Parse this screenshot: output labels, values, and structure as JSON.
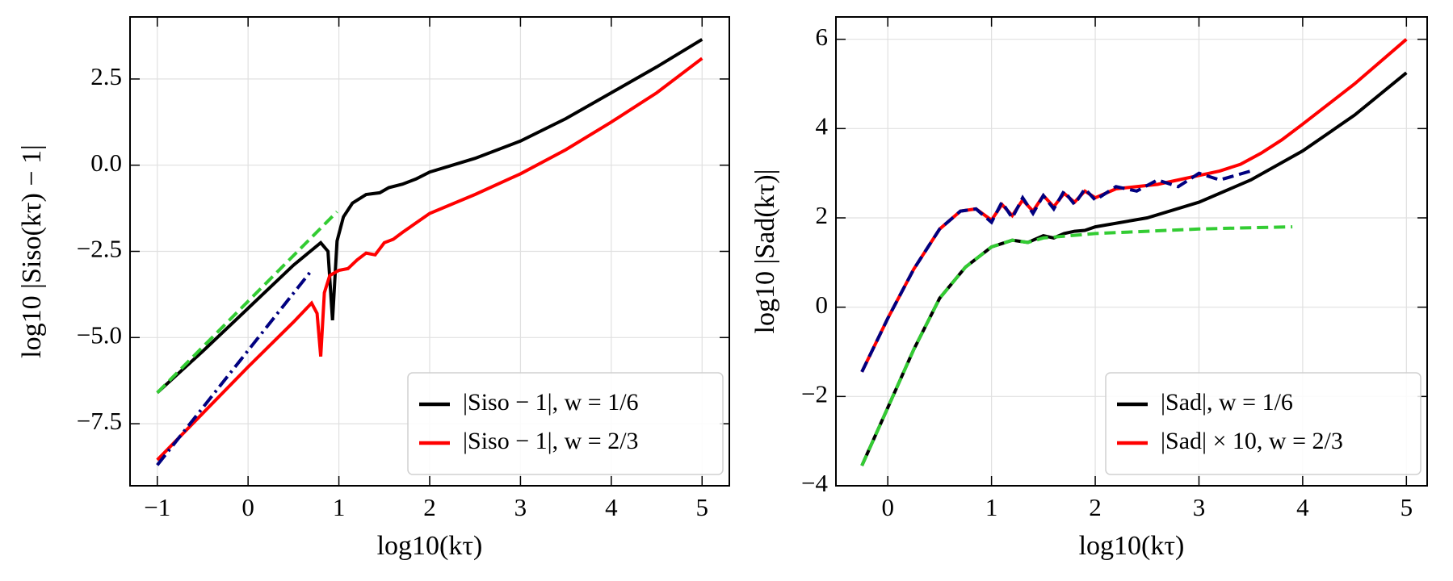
{
  "chart_data": [
    {
      "type": "line",
      "xlabel": "log10(kτ)",
      "ylabel": "log10 |Siso(kτ) − 1|",
      "xlim": [
        -1.3,
        5.3
      ],
      "ylim": [
        -9.3,
        4.3
      ],
      "xticks": [
        {
          "value": -1,
          "label": "−1"
        },
        0,
        1,
        2,
        3,
        4,
        5
      ],
      "yticks": [
        {
          "value": -7.5,
          "label": "−7.5"
        },
        {
          "value": -5,
          "label": "−5.0"
        },
        {
          "value": -2.5,
          "label": "−2.5"
        },
        {
          "value": 0,
          "label": "0.0"
        },
        2.5
      ],
      "grid": true,
      "legend": "lower right",
      "series": [
        {
          "name": "|Siso − 1|, w = 1/6",
          "color": "#000000",
          "linestyle": "solid",
          "x": [
            -1,
            -0.5,
            0,
            0.5,
            0.8,
            0.88,
            0.93,
            0.98,
            1.05,
            1.15,
            1.3,
            1.45,
            1.55,
            1.7,
            1.85,
            2,
            2.5,
            3,
            3.5,
            4,
            4.5,
            5
          ],
          "values": [
            -6.6,
            -5.4,
            -4.15,
            -2.9,
            -2.25,
            -2.5,
            -4.5,
            -2.2,
            -1.5,
            -1.1,
            -0.85,
            -0.8,
            -0.65,
            -0.55,
            -0.4,
            -0.2,
            0.2,
            0.7,
            1.35,
            2.1,
            2.85,
            3.65
          ]
        },
        {
          "name": "|Siso − 1|, w = 2/3",
          "color": "#ff0000",
          "linestyle": "solid",
          "x": [
            -1,
            -0.5,
            0,
            0.5,
            0.7,
            0.76,
            0.8,
            0.84,
            0.9,
            1.0,
            1.1,
            1.2,
            1.3,
            1.4,
            1.5,
            1.6,
            1.7,
            2,
            2.5,
            3,
            3.5,
            4,
            4.5,
            5
          ],
          "values": [
            -8.55,
            -7.2,
            -5.85,
            -4.55,
            -4.0,
            -4.3,
            -5.55,
            -3.7,
            -3.2,
            -3.05,
            -3.0,
            -2.75,
            -2.55,
            -2.6,
            -2.25,
            -2.15,
            -1.95,
            -1.4,
            -0.85,
            -0.25,
            0.45,
            1.25,
            2.1,
            3.1
          ]
        },
        {
          "color": "#33cc33",
          "linestyle": "dashed",
          "x": [
            -1,
            0.98
          ],
          "values": [
            -6.6,
            -1.35
          ]
        },
        {
          "color": "#000080",
          "linestyle": "dashdot",
          "x": [
            -1,
            0.7
          ],
          "values": [
            -8.7,
            -3.05
          ]
        }
      ]
    },
    {
      "type": "line",
      "xlabel": "log10(kτ)",
      "ylabel": "log10 |Sad(kτ)|",
      "xlim": [
        -0.5,
        5.2
      ],
      "ylim": [
        -4,
        6.5
      ],
      "xticks": [
        0,
        1,
        2,
        3,
        4,
        5
      ],
      "yticks": [
        {
          "value": -4,
          "label": "−4"
        },
        {
          "value": -2,
          "label": "−2"
        },
        0,
        2,
        4,
        6
      ],
      "grid": true,
      "legend": "lower right",
      "series": [
        {
          "name": "|Sad|, w = 1/6",
          "color": "#000000",
          "linestyle": "solid",
          "x": [
            -0.25,
            0,
            0.25,
            0.5,
            0.75,
            1,
            1.2,
            1.35,
            1.5,
            1.6,
            1.7,
            1.8,
            1.9,
            2,
            2.5,
            3,
            3.5,
            4,
            4.5,
            5
          ],
          "values": [
            -3.55,
            -2.25,
            -0.95,
            0.2,
            0.9,
            1.35,
            1.5,
            1.45,
            1.6,
            1.55,
            1.65,
            1.7,
            1.72,
            1.8,
            2.0,
            2.35,
            2.85,
            3.5,
            4.3,
            5.25
          ]
        },
        {
          "color": "#33cc33",
          "linestyle": "dashed",
          "x": [
            -0.25,
            0,
            0.25,
            0.5,
            0.75,
            1,
            1.2,
            1.35,
            1.5,
            2,
            2.5,
            3,
            3.5,
            3.9
          ],
          "values": [
            -3.55,
            -2.25,
            -0.95,
            0.2,
            0.9,
            1.35,
            1.5,
            1.45,
            1.55,
            1.65,
            1.7,
            1.75,
            1.78,
            1.8
          ]
        },
        {
          "name": "|Sad| × 10, w = 2/3",
          "color": "#ff0000",
          "linestyle": "solid",
          "x": [
            -0.25,
            0,
            0.25,
            0.5,
            0.7,
            0.85,
            1.0,
            1.1,
            1.2,
            1.3,
            1.4,
            1.5,
            1.6,
            1.7,
            1.8,
            1.9,
            2,
            2.2,
            2.4,
            2.6,
            2.8,
            3,
            3.2,
            3.4,
            3.6,
            3.8,
            4,
            4.5,
            5
          ],
          "values": [
            -1.45,
            -0.25,
            0.85,
            1.75,
            2.15,
            2.2,
            1.95,
            2.3,
            2.05,
            2.4,
            2.15,
            2.5,
            2.25,
            2.55,
            2.35,
            2.6,
            2.45,
            2.65,
            2.7,
            2.75,
            2.85,
            2.95,
            3.05,
            3.2,
            3.45,
            3.75,
            4.1,
            5.0,
            6.0
          ]
        },
        {
          "color": "#000080",
          "linestyle": "dashed",
          "x": [
            -0.25,
            0,
            0.25,
            0.5,
            0.7,
            0.85,
            1.0,
            1.1,
            1.2,
            1.3,
            1.4,
            1.5,
            1.6,
            1.7,
            1.8,
            1.9,
            2,
            2.2,
            2.4,
            2.6,
            2.8,
            3,
            3.2,
            3.5
          ],
          "values": [
            -1.45,
            -0.25,
            0.85,
            1.75,
            2.15,
            2.2,
            1.9,
            2.35,
            2.0,
            2.45,
            2.1,
            2.5,
            2.2,
            2.6,
            2.3,
            2.65,
            2.4,
            2.7,
            2.6,
            2.85,
            2.7,
            3.0,
            2.85,
            3.05
          ]
        }
      ]
    }
  ]
}
